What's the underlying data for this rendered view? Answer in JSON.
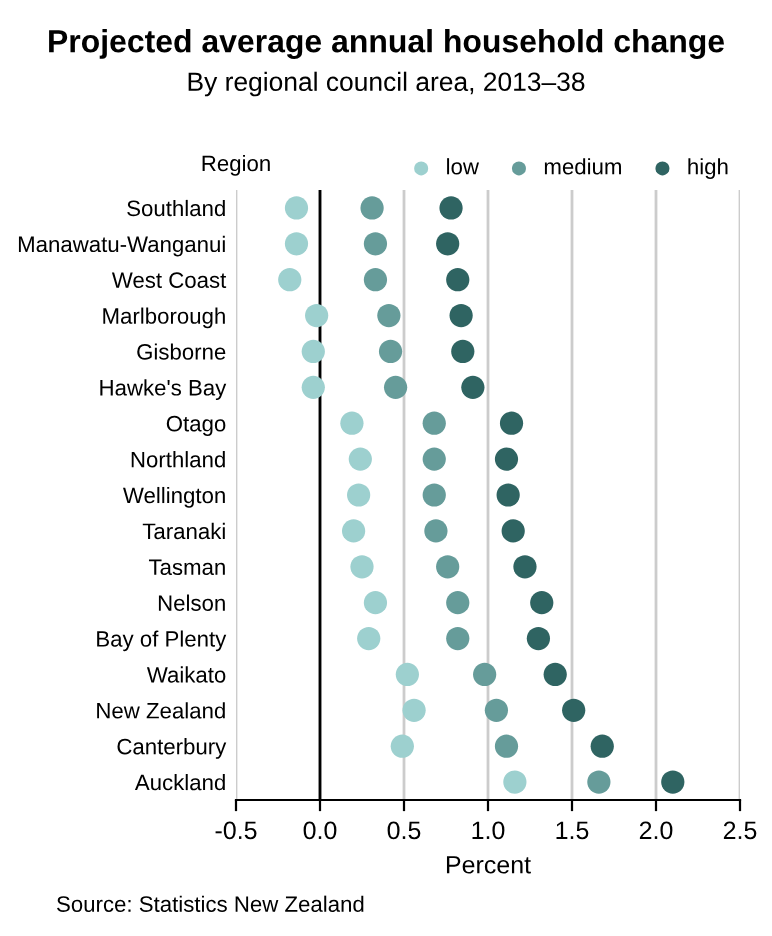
{
  "chart_data": {
    "type": "scatter",
    "orientation": "horizontal",
    "title": "Projected average annual household change",
    "subtitle": "By regional council area, 2013–38",
    "xlabel": "Percent",
    "ylabel": "Region",
    "categories": [
      "Southland",
      "Manawatu-Wanganui",
      "West Coast",
      "Marlborough",
      "Gisborne",
      "Hawke's Bay",
      "Otago",
      "Northland",
      "Wellington",
      "Taranaki",
      "Tasman",
      "Nelson",
      "Bay of Plenty",
      "Waikato",
      "New Zealand",
      "Canterbury",
      "Auckland"
    ],
    "series": [
      {
        "name": "low",
        "color": "#9dd0cf",
        "values": [
          -0.14,
          -0.14,
          -0.18,
          -0.02,
          -0.04,
          -0.04,
          0.19,
          0.24,
          0.23,
          0.2,
          0.25,
          0.33,
          0.29,
          0.52,
          0.56,
          0.49,
          1.16
        ]
      },
      {
        "name": "medium",
        "color": "#669c9a",
        "values": [
          0.31,
          0.33,
          0.33,
          0.41,
          0.42,
          0.45,
          0.68,
          0.68,
          0.68,
          0.69,
          0.76,
          0.82,
          0.82,
          0.98,
          1.05,
          1.11,
          1.66
        ]
      },
      {
        "name": "high",
        "color": "#2f6462",
        "values": [
          0.78,
          0.76,
          0.82,
          0.84,
          0.85,
          0.91,
          1.14,
          1.11,
          1.12,
          1.15,
          1.22,
          1.32,
          1.3,
          1.4,
          1.51,
          1.68,
          2.1
        ]
      }
    ],
    "xlim": [
      -0.5,
      2.5
    ],
    "xticks": [
      -0.5,
      {
        "value": 0,
        "label": "0.0"
      },
      0.5,
      {
        "value": 1,
        "label": "1.0"
      },
      1.5,
      {
        "value": 2,
        "label": "2.0"
      },
      2.5
    ],
    "ref_lines": [
      {
        "axis": "x",
        "value": 0,
        "color": "#000000"
      }
    ],
    "grid": "x",
    "legend": "top right",
    "marker": "circle",
    "annotations": [
      "Source: Statistics New Zealand"
    ]
  }
}
